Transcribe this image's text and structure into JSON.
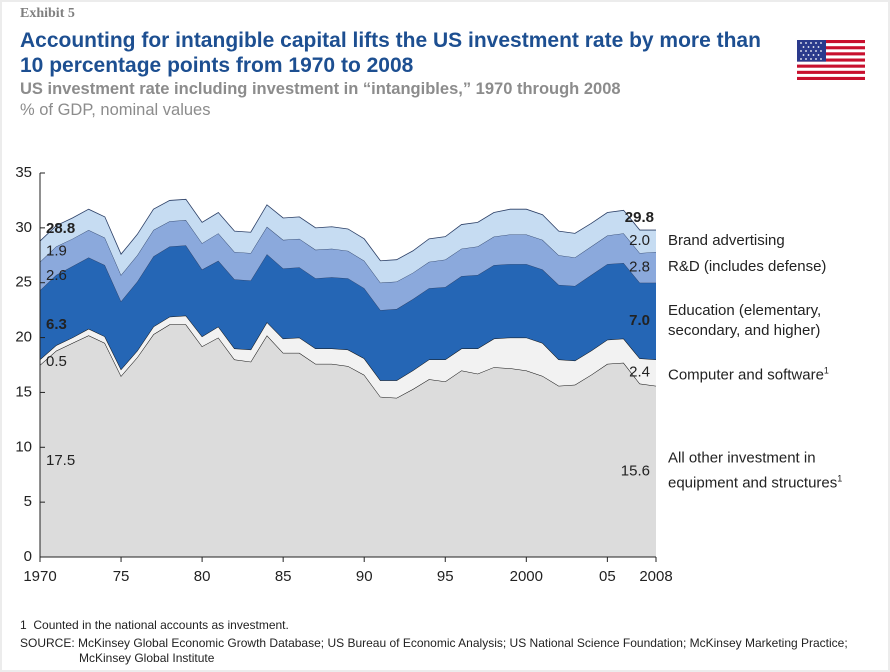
{
  "exhibit": "Exhibit 5",
  "chart_data": {
    "type": "stacked_area",
    "title": "Accounting for intangible capital lifts the US investment rate by more than 10 percentage points from 1970 to 2008",
    "subtitle": "US investment rate including investment in “intangibles,” 1970 through 2008",
    "unit": "% of GDP, nominal values",
    "x": [
      1970,
      1971,
      1972,
      1973,
      1974,
      1975,
      1976,
      1977,
      1978,
      1979,
      1980,
      1981,
      1982,
      1983,
      1984,
      1985,
      1986,
      1987,
      1988,
      1989,
      1990,
      1991,
      1992,
      1993,
      1994,
      1995,
      1996,
      1997,
      1998,
      1999,
      2000,
      2001,
      2002,
      2003,
      2004,
      2005,
      2006,
      2007,
      2008
    ],
    "xlim": [
      1970,
      2008
    ],
    "xticks": [
      1970,
      {
        "value": 1975,
        "label": "75"
      },
      {
        "value": 1980,
        "label": "80"
      },
      {
        "value": 1985,
        "label": "85"
      },
      {
        "value": 1990,
        "label": "90"
      },
      {
        "value": 1995,
        "label": "95"
      },
      2000,
      {
        "value": 2005,
        "label": "05"
      },
      2008
    ],
    "ylim": [
      0,
      35
    ],
    "yticks": [
      0,
      5,
      10,
      15,
      20,
      25,
      30,
      35
    ],
    "series": [
      {
        "name": "All other investment in equipment and structures",
        "note": "1",
        "color": "#dcdcdc",
        "values": [
          17.5,
          18.8,
          19.5,
          20.2,
          19.5,
          16.5,
          18.2,
          20.3,
          21.2,
          21.2,
          19.2,
          20.0,
          18.0,
          17.8,
          20.2,
          18.6,
          18.6,
          17.6,
          17.6,
          17.4,
          16.6,
          14.6,
          14.5,
          15.3,
          16.2,
          16.0,
          17.0,
          16.7,
          17.3,
          17.2,
          17.0,
          16.5,
          15.6,
          15.7,
          16.6,
          17.6,
          17.7,
          15.8,
          15.6
        ],
        "value_labels": [
          "17.5",
          null,
          null,
          null,
          null,
          null,
          null,
          null,
          null,
          null,
          null,
          null,
          null,
          null,
          null,
          null,
          null,
          null,
          null,
          null,
          null,
          null,
          null,
          null,
          null,
          null,
          null,
          null,
          null,
          null,
          null,
          null,
          null,
          null,
          null,
          null,
          null,
          null,
          "15.6"
        ]
      },
      {
        "name": "Computer and software",
        "note": "1",
        "color": "#f2f2f2",
        "values": [
          0.5,
          0.5,
          0.5,
          0.6,
          0.6,
          0.6,
          0.6,
          0.7,
          0.7,
          0.8,
          0.9,
          1.0,
          1.0,
          1.1,
          1.2,
          1.3,
          1.4,
          1.4,
          1.4,
          1.5,
          1.5,
          1.5,
          1.6,
          1.7,
          1.8,
          2.0,
          2.0,
          2.3,
          2.6,
          2.8,
          3.0,
          3.0,
          2.4,
          2.2,
          2.2,
          2.2,
          2.2,
          2.3,
          2.4
        ],
        "value_labels": [
          "0.5",
          null,
          null,
          null,
          null,
          null,
          null,
          null,
          null,
          null,
          null,
          null,
          null,
          null,
          null,
          null,
          null,
          null,
          null,
          null,
          null,
          null,
          null,
          null,
          null,
          null,
          null,
          null,
          null,
          null,
          null,
          null,
          null,
          null,
          null,
          null,
          null,
          null,
          "2.4"
        ]
      },
      {
        "name": "Education (elementary, secondary, and higher)",
        "color": "#2566b5",
        "values": [
          6.3,
          6.4,
          6.5,
          6.5,
          6.5,
          6.2,
          6.3,
          6.4,
          6.4,
          6.4,
          6.1,
          6.0,
          6.3,
          6.3,
          6.2,
          6.4,
          6.4,
          6.4,
          6.5,
          6.5,
          6.4,
          6.4,
          6.5,
          6.5,
          6.5,
          6.6,
          6.6,
          6.7,
          6.7,
          6.7,
          6.7,
          6.7,
          6.8,
          6.8,
          6.9,
          6.9,
          6.9,
          6.9,
          7.0
        ],
        "value_labels": [
          "6.3",
          null,
          null,
          null,
          null,
          null,
          null,
          null,
          null,
          null,
          null,
          null,
          null,
          null,
          null,
          null,
          null,
          null,
          null,
          null,
          null,
          null,
          null,
          null,
          null,
          null,
          null,
          null,
          null,
          null,
          null,
          null,
          null,
          null,
          null,
          null,
          null,
          null,
          "7.0"
        ]
      },
      {
        "name": "R&D (includes defense)",
        "color": "#8ba9dc",
        "values": [
          2.6,
          2.6,
          2.5,
          2.5,
          2.5,
          2.4,
          2.4,
          2.4,
          2.3,
          2.3,
          2.4,
          2.5,
          2.5,
          2.5,
          2.5,
          2.6,
          2.6,
          2.6,
          2.6,
          2.5,
          2.5,
          2.5,
          2.5,
          2.4,
          2.4,
          2.5,
          2.5,
          2.6,
          2.6,
          2.7,
          2.7,
          2.7,
          2.7,
          2.6,
          2.6,
          2.6,
          2.7,
          2.7,
          2.8
        ],
        "value_labels": [
          "2.6",
          null,
          null,
          null,
          null,
          null,
          null,
          null,
          null,
          null,
          null,
          null,
          null,
          null,
          null,
          null,
          null,
          null,
          null,
          null,
          null,
          null,
          null,
          null,
          null,
          null,
          null,
          null,
          null,
          null,
          null,
          null,
          null,
          null,
          null,
          null,
          null,
          null,
          "2.8"
        ]
      },
      {
        "name": "Brand advertising",
        "color": "#c6dcf2",
        "values": [
          1.9,
          1.9,
          1.9,
          1.9,
          1.9,
          1.9,
          1.9,
          1.9,
          1.9,
          1.9,
          1.9,
          1.9,
          1.9,
          1.9,
          2.0,
          2.0,
          2.0,
          2.0,
          2.0,
          2.0,
          2.0,
          2.0,
          2.0,
          2.0,
          2.1,
          2.1,
          2.2,
          2.2,
          2.2,
          2.3,
          2.3,
          2.3,
          2.2,
          2.2,
          2.1,
          2.1,
          2.1,
          2.1,
          2.0
        ],
        "value_labels": [
          "1.9",
          null,
          null,
          null,
          null,
          null,
          null,
          null,
          null,
          null,
          null,
          null,
          null,
          null,
          null,
          null,
          null,
          null,
          null,
          null,
          null,
          null,
          null,
          null,
          null,
          null,
          null,
          null,
          null,
          null,
          null,
          null,
          null,
          null,
          null,
          null,
          null,
          null,
          "2.0"
        ]
      }
    ],
    "total_labels": [
      "28.8",
      "29.8"
    ]
  },
  "footnote": {
    "marker": "1",
    "text": "Counted in the national accounts as investment."
  },
  "source": "SOURCE: McKinsey Global Economic Growth Database; US Bureau of Economic Analysis; US National Science Foundation; McKinsey Marketing Practice; McKinsey Global Institute"
}
